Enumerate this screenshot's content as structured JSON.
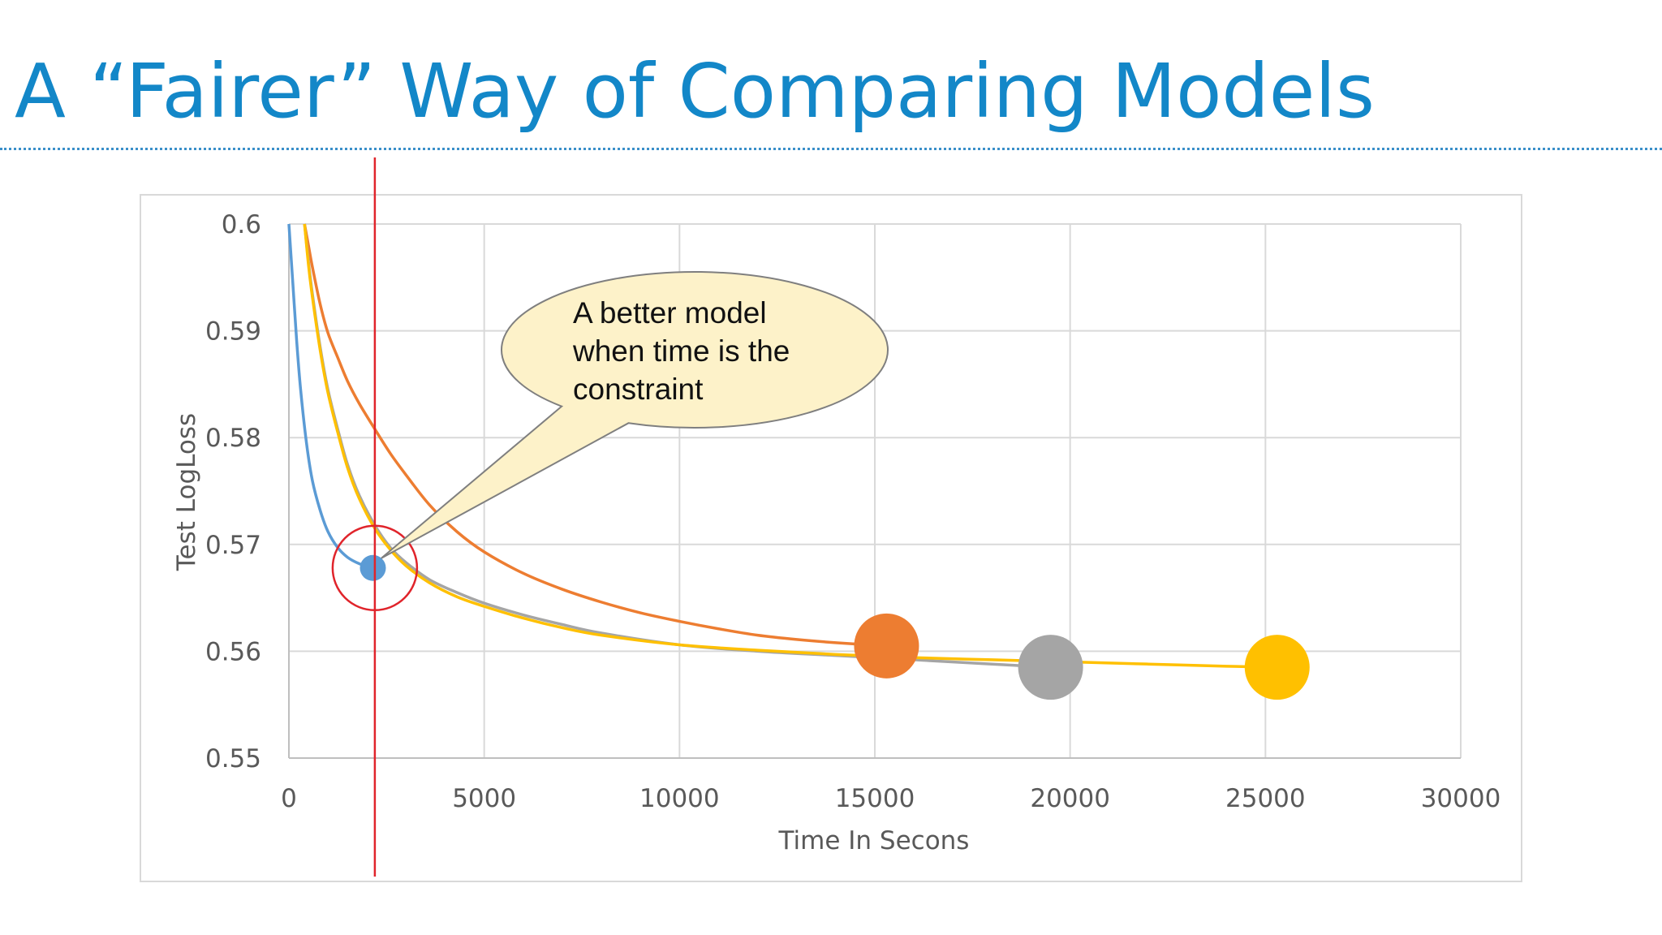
{
  "slide": {
    "title": "A “Fairer” Way of Comparing Models"
  },
  "chart_data": {
    "type": "line",
    "title": "",
    "xlabel": "Time In Secons",
    "ylabel": "Test LogLoss",
    "xlim": [
      0,
      30000
    ],
    "ylim": [
      0.55,
      0.6
    ],
    "x_ticks": [
      "0",
      "5000",
      "10000",
      "15000",
      "20000",
      "25000",
      "30000"
    ],
    "y_ticks": [
      "0.6",
      "0.59",
      "0.58",
      "0.57",
      "0.56",
      "0.55"
    ],
    "grid": true,
    "legend": "none",
    "series": [
      {
        "color": "#5b9bd5",
        "x": [
          0,
          100,
          200,
          300,
          450,
          600,
          800,
          1000,
          1250,
          1500,
          1800,
          2150
        ],
        "y": [
          0.6,
          0.5945,
          0.589,
          0.5845,
          0.5795,
          0.576,
          0.5732,
          0.5712,
          0.5697,
          0.5688,
          0.5682,
          0.5678
        ],
        "end_marker": true
      },
      {
        "color": "#ed7d31",
        "x": [
          400,
          500,
          600,
          800,
          1000,
          1250,
          1500,
          1800,
          2200,
          2600,
          3000,
          3600,
          4300,
          5000,
          6000,
          7000,
          8000,
          9000,
          10000,
          11000,
          12000,
          13000,
          14000,
          15300
        ],
        "y": [
          0.6,
          0.598,
          0.596,
          0.5925,
          0.5898,
          0.5875,
          0.5853,
          0.5832,
          0.5808,
          0.5785,
          0.5765,
          0.5737,
          0.5712,
          0.5693,
          0.5673,
          0.5658,
          0.5646,
          0.5636,
          0.5628,
          0.5621,
          0.5615,
          0.5611,
          0.5608,
          0.5605
        ],
        "end_marker": true
      },
      {
        "color": "#a5a5a5",
        "x": [
          400,
          500,
          600,
          800,
          1000,
          1250,
          1500,
          1800,
          2200,
          2600,
          3000,
          3600,
          4300,
          5000,
          6000,
          7000,
          8000,
          10000,
          12000,
          14000,
          16000,
          18000,
          19500
        ],
        "y": [
          0.6,
          0.5965,
          0.5935,
          0.5885,
          0.5845,
          0.5808,
          0.5775,
          0.5746,
          0.5718,
          0.5697,
          0.5683,
          0.5667,
          0.5655,
          0.5645,
          0.5634,
          0.5625,
          0.5617,
          0.5606,
          0.56,
          0.5596,
          0.5592,
          0.5588,
          0.5585
        ],
        "end_marker": true
      },
      {
        "color": "#ffc000",
        "x": [
          400,
          500,
          600,
          800,
          1000,
          1250,
          1500,
          1800,
          2200,
          2600,
          3000,
          3600,
          4300,
          5000,
          6000,
          7000,
          8000,
          10000,
          12000,
          14000,
          16000,
          18000,
          20000,
          22000,
          24000,
          25300
        ],
        "y": [
          0.6,
          0.5962,
          0.5932,
          0.5882,
          0.5842,
          0.5805,
          0.5772,
          0.5743,
          0.5715,
          0.5695,
          0.568,
          0.5664,
          0.5651,
          0.5642,
          0.5631,
          0.5622,
          0.5615,
          0.5606,
          0.5601,
          0.5597,
          0.5594,
          0.5592,
          0.559,
          0.5588,
          0.5586,
          0.5585
        ],
        "end_marker": true
      }
    ],
    "reference_line": {
      "x": 2200,
      "color": "#e0242b"
    },
    "highlight_circle": {
      "x": 2200,
      "y": 0.5678,
      "color": "#e0242b"
    },
    "callout": {
      "lines": [
        "A better model",
        "when time is the",
        "constraint"
      ],
      "fill": "#fdf2c9",
      "stroke": "#7f7f7f"
    }
  }
}
